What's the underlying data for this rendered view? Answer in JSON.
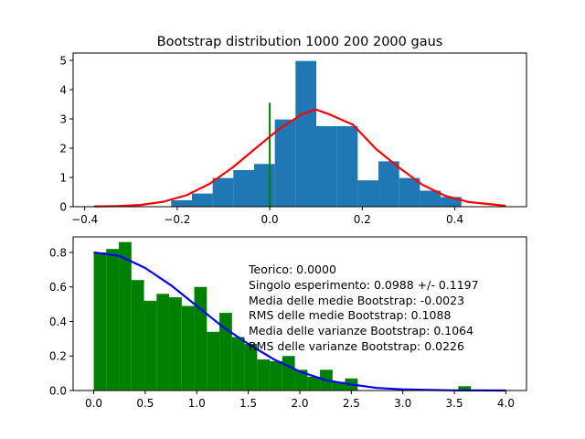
{
  "chart_data": [
    {
      "type": "bar",
      "title": "Bootstrap distribution 1000 200 2000 gaus",
      "xlabel": "",
      "ylabel": "",
      "xlim": [
        -0.425,
        0.555
      ],
      "ylim": [
        0,
        5.25
      ],
      "xticks": [
        -0.4,
        -0.2,
        0.0,
        0.2,
        0.4
      ],
      "xtick_labels": [
        "−0.4",
        "−0.2",
        "0.0",
        "0.2",
        "0.4"
      ],
      "yticks": [
        0,
        1,
        2,
        3,
        4,
        5
      ],
      "ytick_labels": [
        "0",
        "1",
        "2",
        "3",
        "4",
        "5"
      ],
      "grid": false,
      "histogram": {
        "color": "#1f77b4",
        "bin_edges": [
          -0.213,
          -0.1682,
          -0.1234,
          -0.0786,
          -0.0338,
          0.011,
          0.0558,
          0.1006,
          0.1454,
          0.1902,
          0.235,
          0.2798,
          0.3246,
          0.3694,
          0.4142
        ],
        "heights": [
          0.22,
          0.45,
          0.98,
          1.25,
          1.46,
          2.98,
          4.98,
          2.75,
          2.75,
          0.9,
          1.55,
          0.98,
          0.55,
          0.33
        ]
      },
      "fit_curve": {
        "color": "#ff0000",
        "x": [
          -0.38,
          -0.33,
          -0.28,
          -0.23,
          -0.18,
          -0.13,
          -0.08,
          -0.03,
          0.02,
          0.07,
          0.1,
          0.13,
          0.18,
          0.23,
          0.28,
          0.33,
          0.38,
          0.43,
          0.51
        ],
        "y": [
          0.01,
          0.02,
          0.06,
          0.17,
          0.39,
          0.78,
          1.34,
          2.0,
          2.65,
          3.16,
          3.32,
          3.15,
          2.8,
          1.97,
          1.33,
          0.75,
          0.37,
          0.16,
          0.03
        ]
      },
      "vline": {
        "color": "#008000",
        "x": 0.0,
        "ymin": 0.0,
        "ymax": 3.55
      }
    },
    {
      "type": "bar",
      "title": "",
      "xlabel": "",
      "ylabel": "",
      "xlim": [
        -0.2,
        4.2
      ],
      "ylim": [
        0,
        0.89
      ],
      "xticks": [
        0.0,
        0.5,
        1.0,
        1.5,
        2.0,
        2.5,
        3.0,
        3.5,
        4.0
      ],
      "xtick_labels": [
        "0.0",
        "0.5",
        "1.0",
        "1.5",
        "2.0",
        "2.5",
        "3.0",
        "3.5",
        "4.0"
      ],
      "yticks": [
        0.0,
        0.2,
        0.4,
        0.6,
        0.8
      ],
      "ytick_labels": [
        "0.0",
        "0.2",
        "0.4",
        "0.6",
        "0.8"
      ],
      "grid": false,
      "histogram": {
        "color": "#008000",
        "bin_start": 0.0,
        "bin_width": 0.122,
        "heights": [
          0.8,
          0.82,
          0.86,
          0.64,
          0.52,
          0.56,
          0.54,
          0.49,
          0.6,
          0.34,
          0.45,
          0.31,
          0.27,
          0.18,
          0.17,
          0.2,
          0.12,
          0.08,
          0.12,
          0.05,
          0.07,
          0.0,
          0.0,
          0.0,
          0.0,
          0.0,
          0.0,
          0.0,
          0.0,
          0.025
        ]
      },
      "fit_curve": {
        "color": "#0000ff",
        "x": [
          0.0,
          0.25,
          0.5,
          0.75,
          1.0,
          1.25,
          1.5,
          1.75,
          2.0,
          2.25,
          2.5,
          2.75,
          3.0,
          3.25,
          3.5,
          3.75,
          4.0
        ],
        "y": [
          0.8,
          0.78,
          0.71,
          0.61,
          0.49,
          0.37,
          0.27,
          0.18,
          0.11,
          0.06,
          0.035,
          0.015,
          0.007,
          0.003,
          0.001,
          0.0005,
          0.0
        ]
      },
      "annotations": [
        "Teorico:  0.0000",
        "Singolo esperimento:  0.0988 +/-  0.1197",
        "Media delle medie Bootstrap: -0.0023",
        "RMS delle medie Bootstrap:  0.1088",
        "Media delle varianze Bootstrap:  0.1064",
        "RMS delle varianze Bootstrap:  0.0226"
      ]
    }
  ]
}
